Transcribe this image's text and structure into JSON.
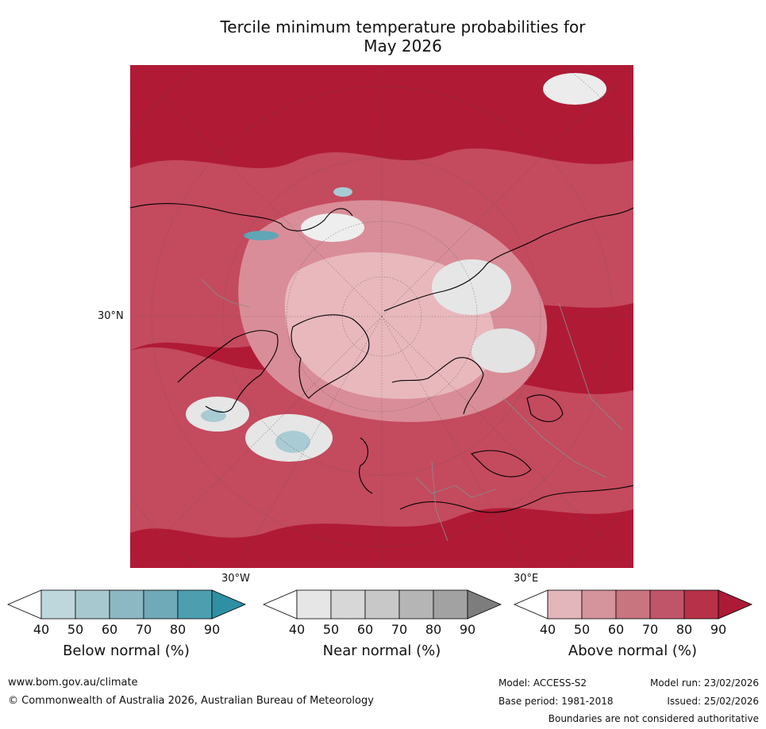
{
  "title": {
    "line1": "Tercile minimum temperature probabilities for",
    "line2": "May 2026"
  },
  "map": {
    "projection": "north-polar-stereographic",
    "lat_label": "30°N",
    "lon_labels": {
      "west": "30°W",
      "east": "30°E"
    },
    "colors": {
      "above_dark": "#b01a35",
      "above_mid": "#c44a5e",
      "above_light": "#d98d98",
      "above_pale": "#e8b8bd",
      "near_pale": "#e6e6e6",
      "below_light": "#a9cbd3",
      "below_mid": "#5fa6b6",
      "coast": "#000000",
      "border": "#8a8a8a"
    }
  },
  "colorbars": [
    {
      "title": "Below normal (%)",
      "ticks": [
        "40",
        "50",
        "60",
        "70",
        "80",
        "90"
      ],
      "colors": [
        "#ffffff",
        "#bdd7dd",
        "#a7c8ce",
        "#8bb8c2",
        "#6eaab8",
        "#4d9fb0",
        "#2f8fa3"
      ]
    },
    {
      "title": "Near normal (%)",
      "ticks": [
        "40",
        "50",
        "60",
        "70",
        "80",
        "90"
      ],
      "colors": [
        "#ffffff",
        "#e6e6e6",
        "#d7d7d7",
        "#c8c8c8",
        "#b5b5b5",
        "#a2a2a2",
        "#7d7d7d"
      ]
    },
    {
      "title": "Above normal (%)",
      "ticks": [
        "40",
        "50",
        "60",
        "70",
        "80",
        "90"
      ],
      "colors": [
        "#ffffff",
        "#e2b6bb",
        "#d5949c",
        "#c97580",
        "#c0556a",
        "#b73248",
        "#ad1a36"
      ]
    }
  ],
  "footer": {
    "url": "www.bom.gov.au/climate",
    "copyright": "© Commonwealth of Australia 2026, Australian Bureau of Meteorology",
    "model": "Model: ACCESS-S2",
    "model_run": "Model run: 23/02/2026",
    "base_period": "Base period: 1981-2018",
    "issued": "Issued: 25/02/2026",
    "disclaimer": "Boundaries are not considered authoritative"
  }
}
